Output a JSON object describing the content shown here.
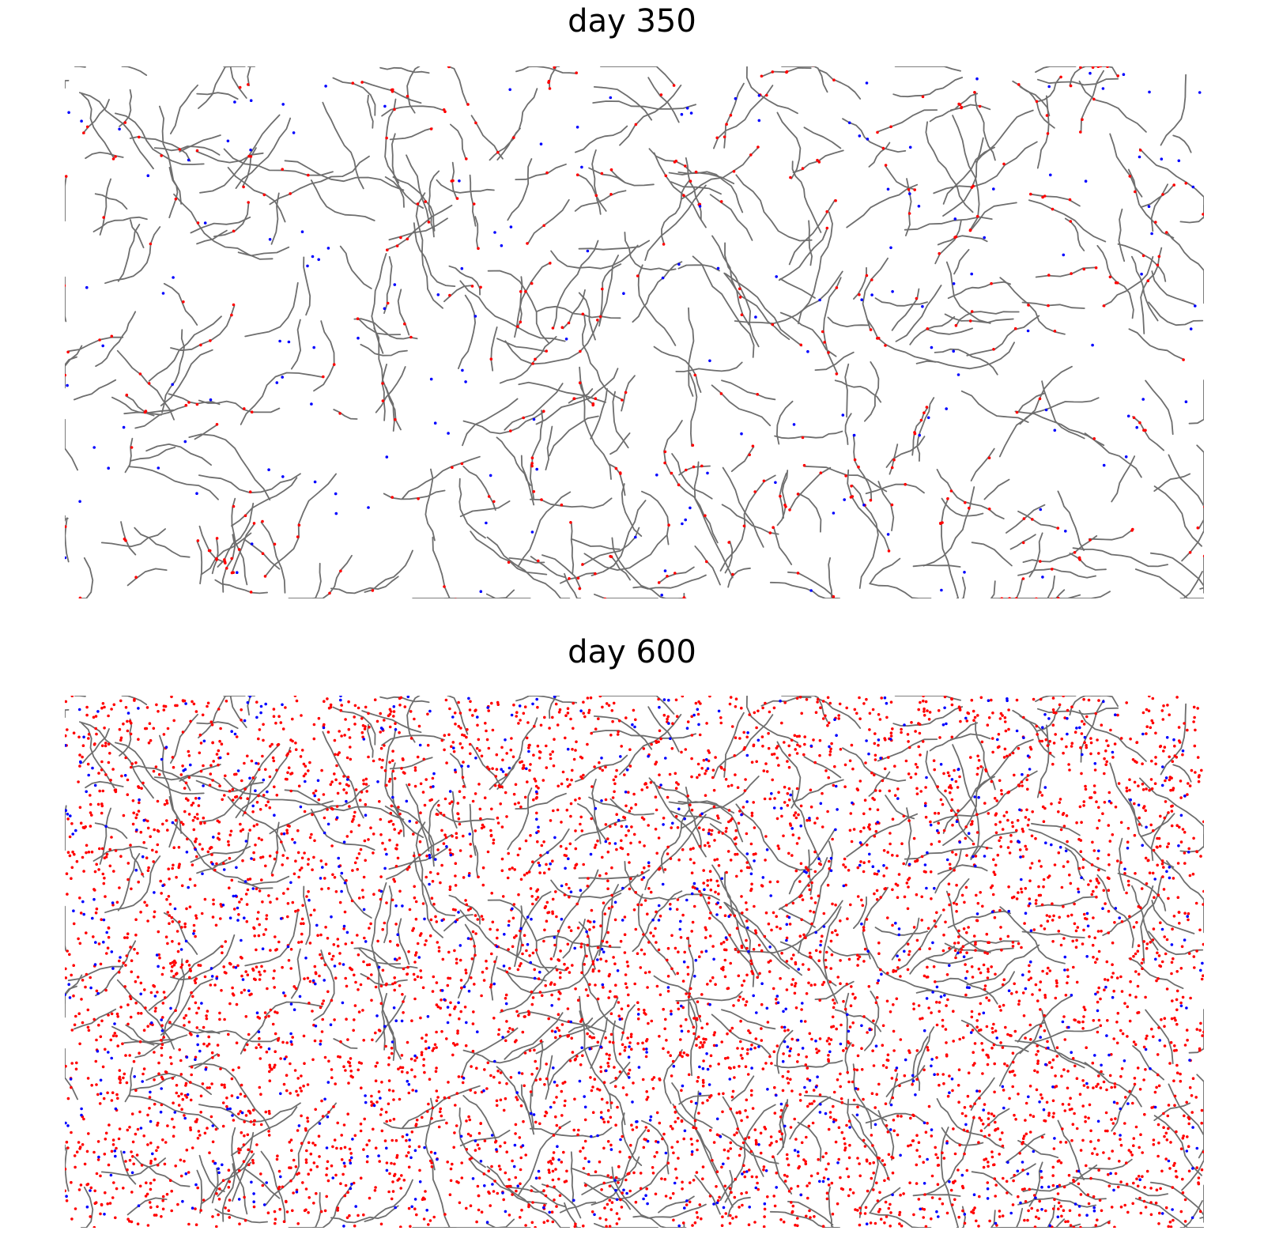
{
  "chart_data": [
    {
      "type": "scatter",
      "title": "day 350",
      "xlabel": "",
      "ylabel": "",
      "axes_visible": false,
      "xlim": [
        0,
        1
      ],
      "ylim": [
        0,
        1
      ],
      "background": "#ffffff",
      "seed": 350,
      "network_seed": 77,
      "series": [
        {
          "key": "network",
          "mark": "line",
          "color": "#6e6e6e",
          "count_approx": 420
        },
        {
          "key": "red_points",
          "mark": "point",
          "color": "#ff0000",
          "count_approx": 420,
          "placement": "along-network"
        },
        {
          "key": "blue_points",
          "mark": "point",
          "color": "#0000ff",
          "count_approx": 170,
          "placement": "scattered"
        }
      ]
    },
    {
      "type": "scatter",
      "title": "day 600",
      "xlabel": "",
      "ylabel": "",
      "axes_visible": false,
      "xlim": [
        0,
        1
      ],
      "ylim": [
        0,
        1
      ],
      "background": "#ffffff",
      "seed": 600,
      "network_seed": 77,
      "series": [
        {
          "key": "network",
          "mark": "line",
          "color": "#6e6e6e",
          "count_approx": 420
        },
        {
          "key": "red_points",
          "mark": "point",
          "color": "#ff0000",
          "count_approx": 5200,
          "placement": "scattered"
        },
        {
          "key": "blue_points",
          "mark": "point",
          "color": "#0000ff",
          "count_approx": 900,
          "placement": "scattered"
        }
      ]
    }
  ]
}
